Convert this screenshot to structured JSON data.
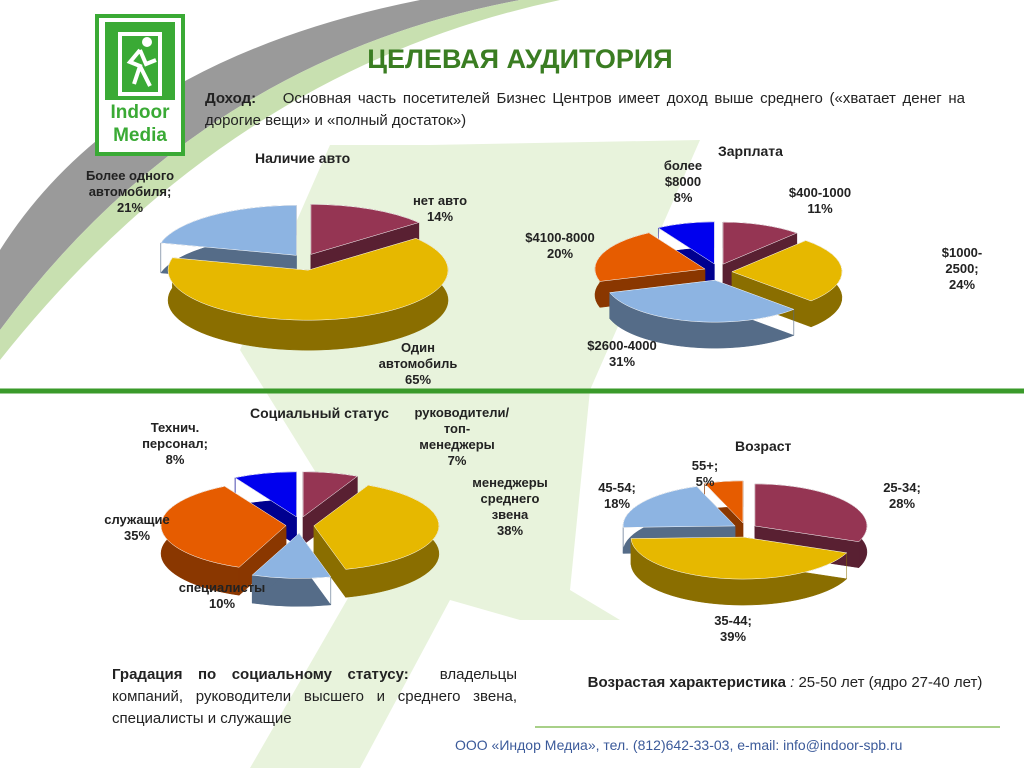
{
  "slide": {
    "logo": [
      "Indoor",
      "Media"
    ],
    "title": "ЦЕЛЕВАЯ АУДИТОРИЯ",
    "income_label": "Доход:",
    "income_text": "Основная часть посетителей Бизнес Центров имеет доход выше среднего («хватает денег на дорогие вещи» и «полный достаток»)",
    "grade_label": "Градация по социальному статусу:",
    "grade_text": "владельцы компаний, руководители высшего и среднего звена, специалисты и служащие",
    "age_label": "Возрастая характеристика",
    "age_sep": ":",
    "age_text": "25-50 лет (ядро 27-40 лет)",
    "footer": "ООО «Индор Медиа», тел. (812)642-33-03, e-mail: info@indoor-spb.ru"
  },
  "chart_data": [
    {
      "type": "pie",
      "title": "Наличие авто",
      "categories": [
        "нет авто",
        "Один автомобиль",
        "Более одного автомобиля;"
      ],
      "values": [
        14,
        65,
        21
      ],
      "value_labels": [
        "14%",
        "65%",
        "21%"
      ],
      "colors": [
        "#953553",
        "#e6b800",
        "#8db4e2"
      ]
    },
    {
      "type": "pie",
      "title": "Зарплата",
      "categories": [
        "$400-1000",
        "$1000-2500;",
        "$2600-4000",
        "$4100-8000",
        "более $8000"
      ],
      "values": [
        11,
        24,
        31,
        20,
        8
      ],
      "value_labels": [
        "11%",
        "24%",
        "31%",
        "20%",
        "8%"
      ],
      "colors": [
        "#953553",
        "#e6b800",
        "#8db4e2",
        "#e65c00",
        "#0000ee"
      ]
    },
    {
      "type": "pie",
      "title": "Социальный статус",
      "categories": [
        "руководители/топ-менеджеры",
        "менеджеры среднего звена",
        "специалисты",
        "служащие",
        "Технич. персонал;"
      ],
      "values": [
        7,
        38,
        10,
        35,
        8
      ],
      "value_labels": [
        "7%",
        "38%",
        "10%",
        "35%",
        "8%"
      ],
      "colors": [
        "#953553",
        "#e6b800",
        "#8db4e2",
        "#e65c00",
        "#0000ee"
      ]
    },
    {
      "type": "pie",
      "title": "Возраст",
      "categories": [
        "25-34;",
        "35-44;",
        "45-54;",
        "55+;"
      ],
      "values": [
        28,
        39,
        18,
        5
      ],
      "value_labels": [
        "28%",
        "39%",
        "18%",
        "5%"
      ],
      "colors": [
        "#953553",
        "#e6b800",
        "#8db4e2",
        "#e65c00"
      ]
    }
  ]
}
